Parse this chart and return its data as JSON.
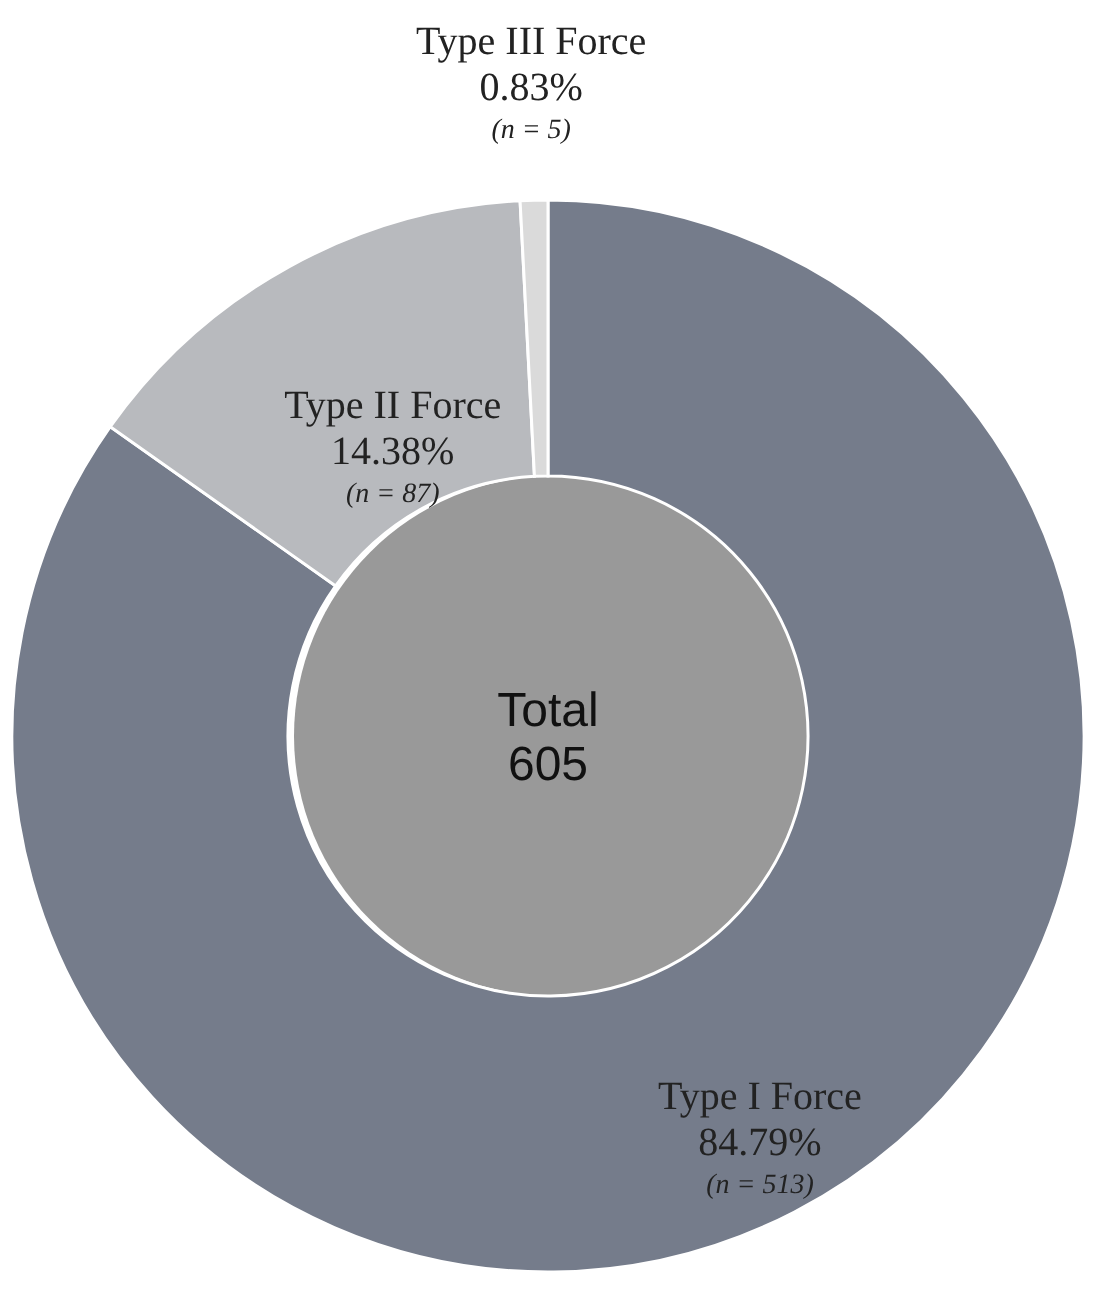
{
  "chart_data": {
    "type": "donut",
    "categories": [
      "Type I Force",
      "Type II Force",
      "Type III Force"
    ],
    "values": [
      84.79,
      14.38,
      0.83
    ],
    "value_labels": [
      "84.79%",
      "14.38%",
      "0.83%"
    ],
    "colors": [
      "#757c8b",
      "#b8babe",
      "#dadada"
    ],
    "annotations": [
      "(n = 513)",
      "(n = 87)",
      "(n = 5)",
      "Total",
      "605"
    ]
  }
}
